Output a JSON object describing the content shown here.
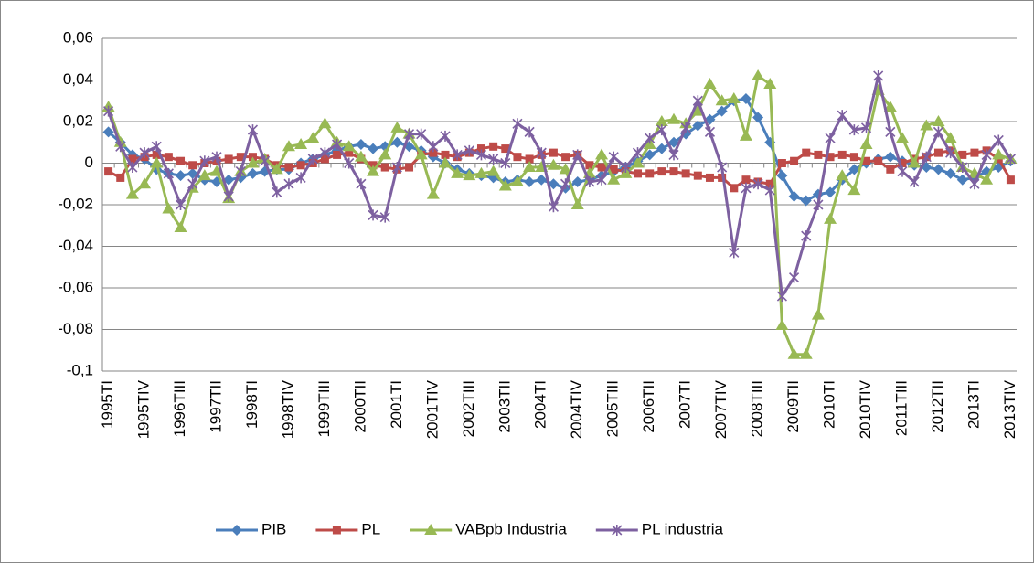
{
  "chart_data": {
    "type": "line",
    "categories": [
      "1995TI",
      null,
      null,
      "1995TIV",
      null,
      null,
      "1996TIII",
      null,
      null,
      "1997TII",
      null,
      null,
      "1998TI",
      null,
      null,
      "1998TIV",
      null,
      null,
      "1999TIII",
      null,
      null,
      "2000TII",
      null,
      null,
      "2001TI",
      null,
      null,
      "2001TIV",
      null,
      null,
      "2002TIII",
      null,
      null,
      "2003TII",
      null,
      null,
      "2004TI",
      null,
      null,
      "2004TIV",
      null,
      null,
      "2005TIII",
      null,
      null,
      "2006TII",
      null,
      null,
      "2007TI",
      null,
      null,
      "2007TIV",
      null,
      null,
      "2008TIII",
      null,
      null,
      "2009TII",
      null,
      null,
      "2010TI",
      null,
      null,
      "2010TIV",
      null,
      null,
      "2011TIII",
      null,
      null,
      "2012TII",
      null,
      null,
      "2013TI",
      null,
      null,
      "2013TIV"
    ],
    "series": [
      {
        "name": "PIB",
        "color": "#4a7ebb",
        "marker": "diamond",
        "values": [
          0.015,
          0.01,
          0.004,
          0.002,
          -0.003,
          -0.005,
          -0.006,
          -0.005,
          -0.008,
          -0.009,
          -0.008,
          -0.007,
          -0.005,
          -0.004,
          -0.003,
          -0.003,
          0.0,
          0.002,
          0.004,
          0.006,
          0.008,
          0.009,
          0.007,
          0.008,
          0.01,
          0.008,
          0.006,
          0.003,
          0.0,
          -0.003,
          -0.005,
          -0.006,
          -0.007,
          -0.009,
          -0.008,
          -0.009,
          -0.008,
          -0.01,
          -0.012,
          -0.009,
          -0.008,
          -0.006,
          -0.004,
          -0.002,
          0.001,
          0.004,
          0.007,
          0.01,
          0.014,
          0.018,
          0.021,
          0.025,
          0.03,
          0.031,
          0.022,
          0.01,
          -0.006,
          -0.016,
          -0.018,
          -0.015,
          -0.014,
          -0.008,
          -0.003,
          0.0,
          0.002,
          0.003,
          0.001,
          -0.001,
          -0.002,
          -0.003,
          -0.005,
          -0.008,
          -0.007,
          -0.004,
          -0.002,
          0.001
        ]
      },
      {
        "name": "PL",
        "color": "#be4b48",
        "marker": "square",
        "values": [
          -0.004,
          -0.007,
          0.002,
          0.003,
          0.004,
          0.003,
          0.001,
          -0.001,
          0.0,
          0.001,
          0.002,
          0.003,
          0.003,
          0.002,
          -0.001,
          -0.002,
          -0.001,
          0.0,
          0.002,
          0.004,
          0.005,
          0.002,
          -0.001,
          -0.002,
          -0.003,
          -0.002,
          0.004,
          0.005,
          0.004,
          0.003,
          0.005,
          0.007,
          0.008,
          0.007,
          0.003,
          0.002,
          0.004,
          0.005,
          0.003,
          0.004,
          -0.001,
          -0.002,
          -0.003,
          -0.004,
          -0.005,
          -0.005,
          -0.004,
          -0.004,
          -0.005,
          -0.006,
          -0.007,
          -0.007,
          -0.012,
          -0.008,
          -0.009,
          -0.01,
          0.0,
          0.001,
          0.005,
          0.004,
          0.003,
          0.004,
          0.003,
          0.001,
          0.001,
          -0.003,
          0.0,
          0.002,
          0.003,
          0.005,
          0.006,
          0.004,
          0.005,
          0.006,
          0.002,
          -0.008
        ]
      },
      {
        "name": "VABpb Industria",
        "color": "#98b954",
        "marker": "triangle",
        "values": [
          0.027,
          0.01,
          -0.015,
          -0.01,
          0.0,
          -0.022,
          -0.031,
          -0.012,
          -0.006,
          -0.004,
          -0.017,
          -0.004,
          0.0,
          0.002,
          -0.003,
          0.008,
          0.009,
          0.012,
          0.019,
          0.01,
          0.008,
          0.003,
          -0.004,
          0.004,
          0.017,
          0.014,
          0.004,
          -0.015,
          0.0,
          -0.005,
          -0.006,
          -0.005,
          -0.004,
          -0.011,
          -0.009,
          -0.002,
          -0.002,
          -0.001,
          -0.003,
          -0.02,
          -0.005,
          0.004,
          -0.008,
          -0.005,
          0.0,
          0.009,
          0.02,
          0.021,
          0.019,
          0.025,
          0.038,
          0.03,
          0.031,
          0.013,
          0.042,
          0.038,
          -0.078,
          -0.092,
          -0.092,
          -0.073,
          -0.027,
          -0.006,
          -0.013,
          0.009,
          0.035,
          0.027,
          0.012,
          0.0,
          0.018,
          0.02,
          0.012,
          -0.002,
          -0.005,
          -0.008,
          0.004,
          0.002
        ]
      },
      {
        "name": "PL industria",
        "color": "#7d60a0",
        "marker": "star",
        "values": [
          0.025,
          0.008,
          -0.002,
          0.005,
          0.008,
          -0.005,
          -0.02,
          -0.01,
          0.001,
          0.003,
          -0.016,
          -0.004,
          0.016,
          0.001,
          -0.014,
          -0.01,
          -0.007,
          0.002,
          0.005,
          0.009,
          0.0,
          -0.01,
          -0.025,
          -0.026,
          -0.002,
          0.014,
          0.014,
          0.008,
          0.013,
          0.004,
          0.006,
          0.004,
          0.002,
          0.0,
          0.019,
          0.015,
          0.005,
          -0.021,
          -0.01,
          0.004,
          -0.009,
          -0.008,
          0.003,
          -0.002,
          0.005,
          0.012,
          0.016,
          0.004,
          0.017,
          0.03,
          0.015,
          -0.002,
          -0.043,
          -0.012,
          -0.01,
          -0.013,
          -0.064,
          -0.055,
          -0.035,
          -0.02,
          0.012,
          0.023,
          0.016,
          0.017,
          0.042,
          0.015,
          -0.004,
          -0.009,
          0.003,
          0.015,
          0.005,
          -0.002,
          -0.01,
          0.004,
          0.011,
          0.002
        ]
      }
    ],
    "ylim": [
      -0.1,
      0.06
    ],
    "yticks": [
      {
        "value": -0.1,
        "label": "-0,1"
      },
      {
        "value": -0.08,
        "label": "-0,08"
      },
      {
        "value": -0.06,
        "label": "-0,06"
      },
      {
        "value": -0.04,
        "label": "-0,04"
      },
      {
        "value": -0.02,
        "label": "-0,02"
      },
      0,
      {
        "value": 0.02,
        "label": "0,02"
      },
      {
        "value": 0.04,
        "label": "0,04"
      },
      {
        "value": 0.06,
        "label": "0,06"
      }
    ],
    "grid": true,
    "legend": "bottom"
  }
}
